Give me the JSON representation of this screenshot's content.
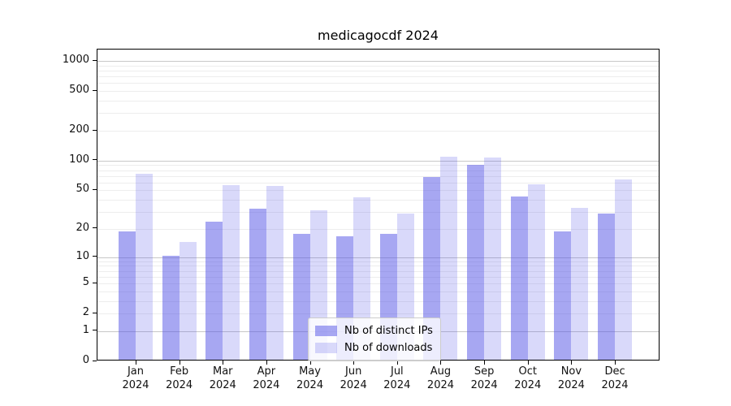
{
  "title": "medicagocdf 2024",
  "y_axis": {
    "tick_labels": [
      "0",
      "1",
      "2",
      "5",
      "10",
      "20",
      "50",
      "100",
      "200",
      "500",
      "1000"
    ],
    "tick_values": [
      0,
      1,
      2,
      5,
      10,
      20,
      50,
      100,
      200,
      500,
      1000
    ]
  },
  "x_axis": {
    "months": [
      "Jan",
      "Feb",
      "Mar",
      "Apr",
      "May",
      "Jun",
      "Jul",
      "Aug",
      "Sep",
      "Oct",
      "Nov",
      "Dec"
    ],
    "year": "2024"
  },
  "legend": {
    "items": [
      {
        "label": "Nb of distinct IPs",
        "color_key": "ips"
      },
      {
        "label": "Nb of downloads",
        "color_key": "downloads"
      }
    ]
  },
  "colors": {
    "ips": "rgba(80,80,230,0.5)",
    "downloads": "rgba(80,80,230,0.22)",
    "grid_major": "#c8c8c8",
    "grid_minor": "#ededed"
  },
  "chart_data": {
    "type": "bar",
    "title": "medicagocdf 2024",
    "categories": [
      "Jan 2024",
      "Feb 2024",
      "Mar 2024",
      "Apr 2024",
      "May 2024",
      "Jun 2024",
      "Jul 2024",
      "Aug 2024",
      "Sep 2024",
      "Oct 2024",
      "Nov 2024",
      "Dec 2024"
    ],
    "series": [
      {
        "name": "Nb of distinct IPs",
        "values": [
          18,
          10,
          23,
          31,
          17,
          16,
          17,
          66,
          87,
          42,
          18,
          28
        ]
      },
      {
        "name": "Nb of downloads",
        "values": [
          71,
          14,
          54,
          53,
          30,
          41,
          28,
          106,
          104,
          55,
          32,
          62
        ]
      }
    ],
    "yscale": "log1p",
    "ylim": [
      0,
      1300
    ],
    "yticks": [
      0,
      1,
      2,
      5,
      10,
      20,
      50,
      100,
      200,
      500,
      1000
    ],
    "grid": true,
    "legend_position": "lower center"
  }
}
